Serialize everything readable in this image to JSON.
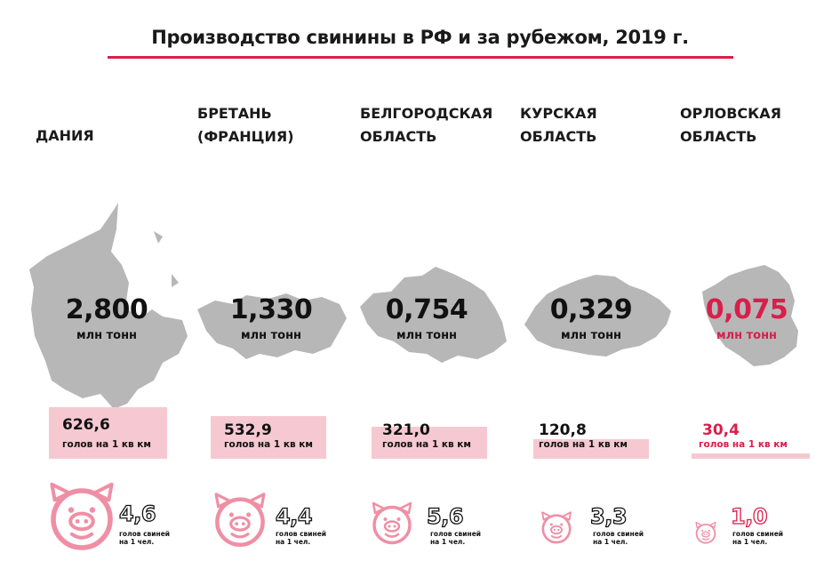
{
  "title": "Производство свинины в РФ и за рубежом, 2019 г.",
  "colors": {
    "accent": "#d81f4a",
    "map_gray": "#b7b7b7",
    "highlight_pink": "#f6c9d2",
    "pig_pink": "#ef8fa5"
  },
  "chart_data": {
    "type": "table",
    "title": "Производство свинины в РФ и за рубежом, 2019 г.",
    "regions": [
      {
        "name_line1": "ДАНИЯ",
        "name_line2": "",
        "production": "2,800",
        "production_unit": "млн тонн",
        "density": "626,6",
        "density_unit": "голов на 1 кв км",
        "pigs_per_person": "4,6",
        "pigs_unit_line1": "голов свиней",
        "pigs_unit_line2": "на 1 чел.",
        "highlight": false,
        "map_icon": "denmark-map-icon",
        "pig_icon": "pig-icon"
      },
      {
        "name_line1": "БРЕТАНЬ",
        "name_line2": "(ФРАНЦИЯ)",
        "production": "1,330",
        "production_unit": "млн тонн",
        "density": "532,9",
        "density_unit": "голов на 1 кв км",
        "pigs_per_person": "4,4",
        "pigs_unit_line1": "голов свиней",
        "pigs_unit_line2": "на 1 чел.",
        "highlight": false,
        "map_icon": "brittany-map-icon",
        "pig_icon": "pig-icon"
      },
      {
        "name_line1": "БЕЛГОРОДСКАЯ",
        "name_line2": "ОБЛАСТЬ",
        "production": "0,754",
        "production_unit": "млн тонн",
        "density": "321,0",
        "density_unit": "голов на 1 кв км",
        "pigs_per_person": "5,6",
        "pigs_unit_line1": "голов свиней",
        "pigs_unit_line2": "на 1 чел.",
        "highlight": false,
        "map_icon": "belgorod-map-icon",
        "pig_icon": "pig-icon"
      },
      {
        "name_line1": "КУРСКАЯ",
        "name_line2": "ОБЛАСТЬ",
        "production": "0,329",
        "production_unit": "млн тонн",
        "density": "120,8",
        "density_unit": "голов на 1 кв км",
        "pigs_per_person": "3,3",
        "pigs_unit_line1": "голов свиней",
        "pigs_unit_line2": "на 1 чел.",
        "highlight": false,
        "map_icon": "kursk-map-icon",
        "pig_icon": "pig-icon"
      },
      {
        "name_line1": "ОРЛОВСКАЯ",
        "name_line2": "ОБЛАСТЬ",
        "production": "0,075",
        "production_unit": "млн тонн",
        "density": "30,4",
        "density_unit": "голов на 1 кв км",
        "pigs_per_person": "1,0",
        "pigs_unit_line1": "голов свиней",
        "pigs_unit_line2": "на 1 чел.",
        "highlight": true,
        "map_icon": "oryol-map-icon",
        "pig_icon": "pig-icon"
      }
    ],
    "production_values_mln_t": [
      2.8,
      1.33,
      0.754,
      0.329,
      0.075
    ],
    "density_values": [
      626.6,
      532.9,
      321.0,
      120.8,
      30.4
    ],
    "pigs_per_person_values": [
      4.6,
      4.4,
      5.6,
      3.3,
      1.0
    ]
  }
}
